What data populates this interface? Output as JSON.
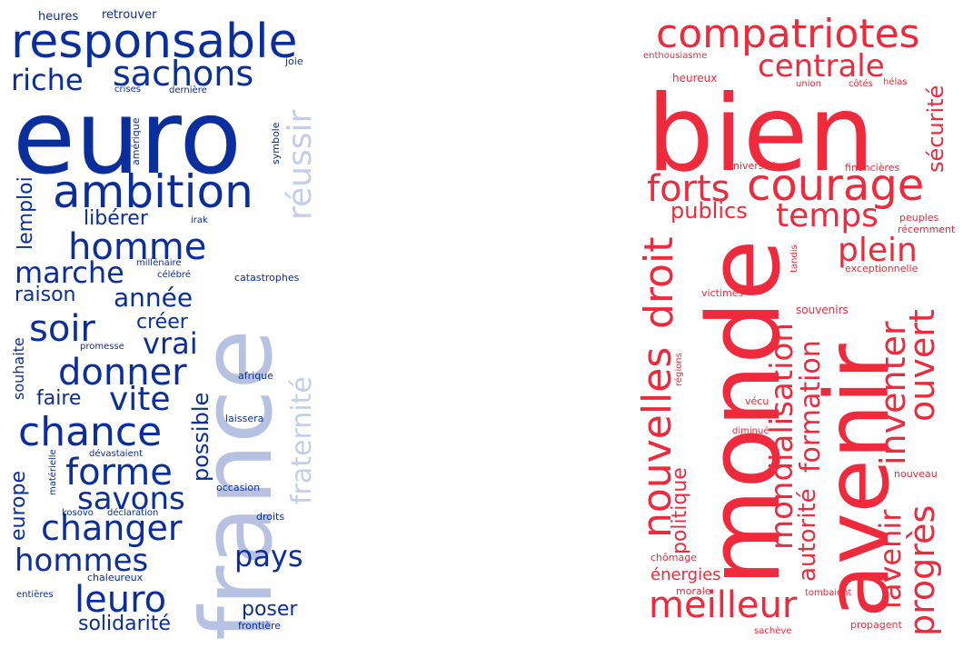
{
  "colors": {
    "left_primary": "#0a2e9c",
    "left_light": "#b7c2e3",
    "right_primary": "#ee2a3c",
    "background": "#ffffff"
  },
  "left_cloud": {
    "words": [
      "euro",
      "france",
      "responsable",
      "sachons",
      "ambition",
      "riche",
      "réussir",
      "homme",
      "marche",
      "donner",
      "chance",
      "forme",
      "changer",
      "soir",
      "vrai",
      "savons",
      "hommes",
      "leuro",
      "année",
      "fraternité",
      "vite",
      "pays",
      "possible",
      "lemploi",
      "raison",
      "créer",
      "libérer",
      "faire",
      "solidarité",
      "poser",
      "europe",
      "souhaite",
      "heures",
      "retrouver",
      "joie",
      "crises",
      "dernière",
      "amérique",
      "symbole",
      "irak",
      "millénaire",
      "célébré",
      "catastrophes",
      "promesse",
      "afrique",
      "laissera",
      "dévastaient",
      "matérielle",
      "kosovo",
      "déclaration",
      "occasion",
      "droits",
      "chaleureux",
      "entières",
      "frontière"
    ]
  },
  "right_cloud": {
    "words": [
      "bien",
      "monde",
      "avenir",
      "compatriotes",
      "centrale",
      "courage",
      "forts",
      "temps",
      "plein",
      "sécurité",
      "publics",
      "nouvelles",
      "droit",
      "ouvert",
      "inventer",
      "mondialisation",
      "formation",
      "autorité",
      "lavenir",
      "progrès",
      "politique",
      "meilleur",
      "énergies",
      "chômage",
      "enthousiasme",
      "heureux",
      "union",
      "côtés",
      "hélas",
      "universelle",
      "financières",
      "peuples",
      "récemment",
      "tandis",
      "exceptionnelle",
      "victimes",
      "souvenirs",
      "régions",
      "vécu",
      "diminué",
      "nouveau",
      "morale",
      "tombaient",
      "propagent",
      "sachève"
    ]
  }
}
